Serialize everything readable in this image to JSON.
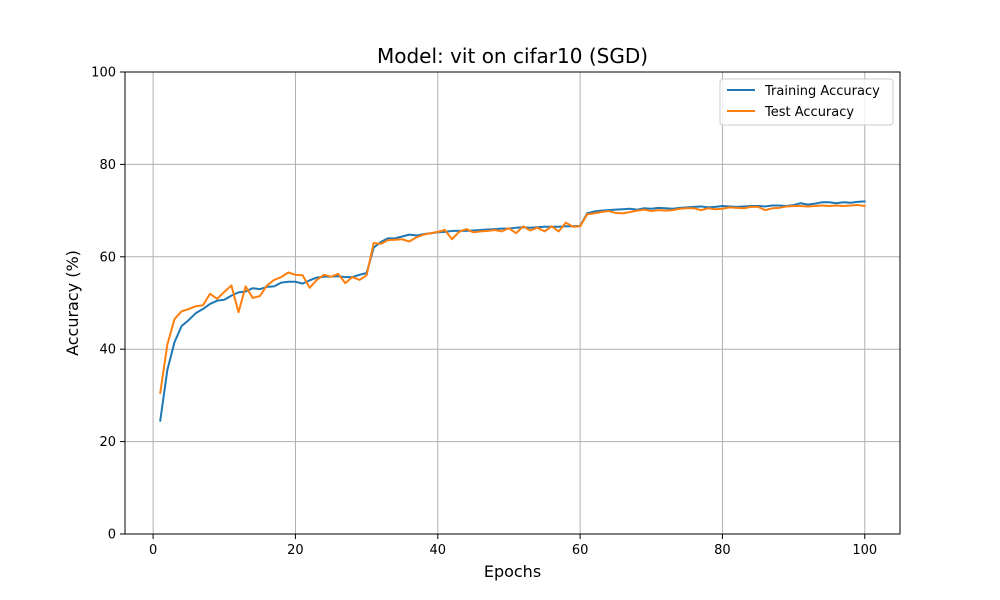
{
  "chart_data": {
    "type": "line",
    "title": "Model: vit on cifar10 (SGD)",
    "xlabel": "Epochs",
    "ylabel": "Accuracy (%)",
    "xlim": [
      -3.95,
      104.95
    ],
    "ylim": [
      0,
      100
    ],
    "xticks": [
      0,
      20,
      40,
      60,
      80,
      100
    ],
    "yticks": [
      0,
      20,
      40,
      60,
      80,
      100
    ],
    "grid": true,
    "legend_position": "top-right",
    "x": [
      1,
      2,
      3,
      4,
      5,
      6,
      7,
      8,
      9,
      10,
      11,
      12,
      13,
      14,
      15,
      16,
      17,
      18,
      19,
      20,
      21,
      22,
      23,
      24,
      25,
      26,
      27,
      28,
      29,
      30,
      31,
      32,
      33,
      34,
      35,
      36,
      37,
      38,
      39,
      40,
      41,
      42,
      43,
      44,
      45,
      46,
      47,
      48,
      49,
      50,
      51,
      52,
      53,
      54,
      55,
      56,
      57,
      58,
      59,
      60,
      61,
      62,
      63,
      64,
      65,
      66,
      67,
      68,
      69,
      70,
      71,
      72,
      73,
      74,
      75,
      76,
      77,
      78,
      79,
      80,
      81,
      82,
      83,
      84,
      85,
      86,
      87,
      88,
      89,
      90,
      91,
      92,
      93,
      94,
      95,
      96,
      97,
      98,
      99,
      100
    ],
    "series": [
      {
        "name": "Training Accuracy",
        "color": "#1f77b4",
        "values": [
          24.5,
          35.5,
          41.5,
          45.0,
          46.3,
          47.8,
          48.7,
          49.8,
          50.5,
          50.7,
          51.6,
          52.3,
          52.5,
          53.2,
          53.0,
          53.5,
          53.6,
          54.4,
          54.6,
          54.6,
          54.2,
          54.9,
          55.5,
          55.7,
          55.7,
          55.8,
          55.6,
          55.6,
          56.1,
          56.5,
          62.0,
          63.2,
          64.0,
          64.0,
          64.4,
          64.8,
          64.6,
          64.9,
          65.1,
          65.3,
          65.4,
          65.6,
          65.6,
          65.6,
          65.7,
          65.8,
          65.9,
          66.0,
          66.1,
          66.1,
          66.3,
          66.4,
          66.3,
          66.4,
          66.5,
          66.5,
          66.5,
          66.6,
          66.6,
          66.7,
          69.4,
          69.8,
          70.0,
          70.1,
          70.2,
          70.3,
          70.4,
          70.2,
          70.5,
          70.4,
          70.6,
          70.5,
          70.4,
          70.6,
          70.7,
          70.8,
          70.9,
          70.7,
          70.8,
          71.0,
          70.9,
          70.8,
          70.9,
          71.0,
          71.0,
          70.9,
          71.1,
          71.1,
          71.0,
          71.2,
          71.6,
          71.3,
          71.5,
          71.8,
          71.8,
          71.6,
          71.8,
          71.7,
          71.9,
          72.0
        ]
      },
      {
        "name": "Test Accuracy",
        "color": "#ff7f0e",
        "values": [
          30.5,
          41.0,
          46.5,
          48.2,
          48.7,
          49.3,
          49.5,
          52.0,
          50.9,
          52.4,
          53.8,
          48.0,
          53.6,
          51.1,
          51.5,
          53.8,
          55.0,
          55.6,
          56.6,
          56.1,
          56.0,
          53.3,
          55.0,
          56.1,
          55.7,
          56.3,
          54.3,
          55.6,
          55.0,
          56.0,
          63.0,
          62.8,
          63.6,
          63.7,
          63.8,
          63.3,
          64.2,
          64.8,
          65.1,
          65.4,
          65.8,
          63.8,
          65.4,
          66.0,
          65.3,
          65.5,
          65.6,
          65.8,
          65.5,
          66.2,
          65.1,
          66.6,
          65.7,
          66.3,
          65.5,
          66.6,
          65.5,
          67.4,
          66.5,
          66.6,
          69.2,
          69.4,
          69.7,
          69.9,
          69.5,
          69.4,
          69.7,
          70.0,
          70.2,
          69.9,
          70.1,
          70.0,
          70.1,
          70.4,
          70.5,
          70.5,
          70.1,
          70.5,
          70.3,
          70.4,
          70.7,
          70.6,
          70.5,
          70.8,
          70.8,
          70.1,
          70.5,
          70.6,
          70.9,
          71.0,
          71.0,
          70.9,
          71.0,
          71.1,
          71.0,
          71.1,
          71.0,
          71.1,
          71.2,
          71.0
        ]
      }
    ]
  }
}
